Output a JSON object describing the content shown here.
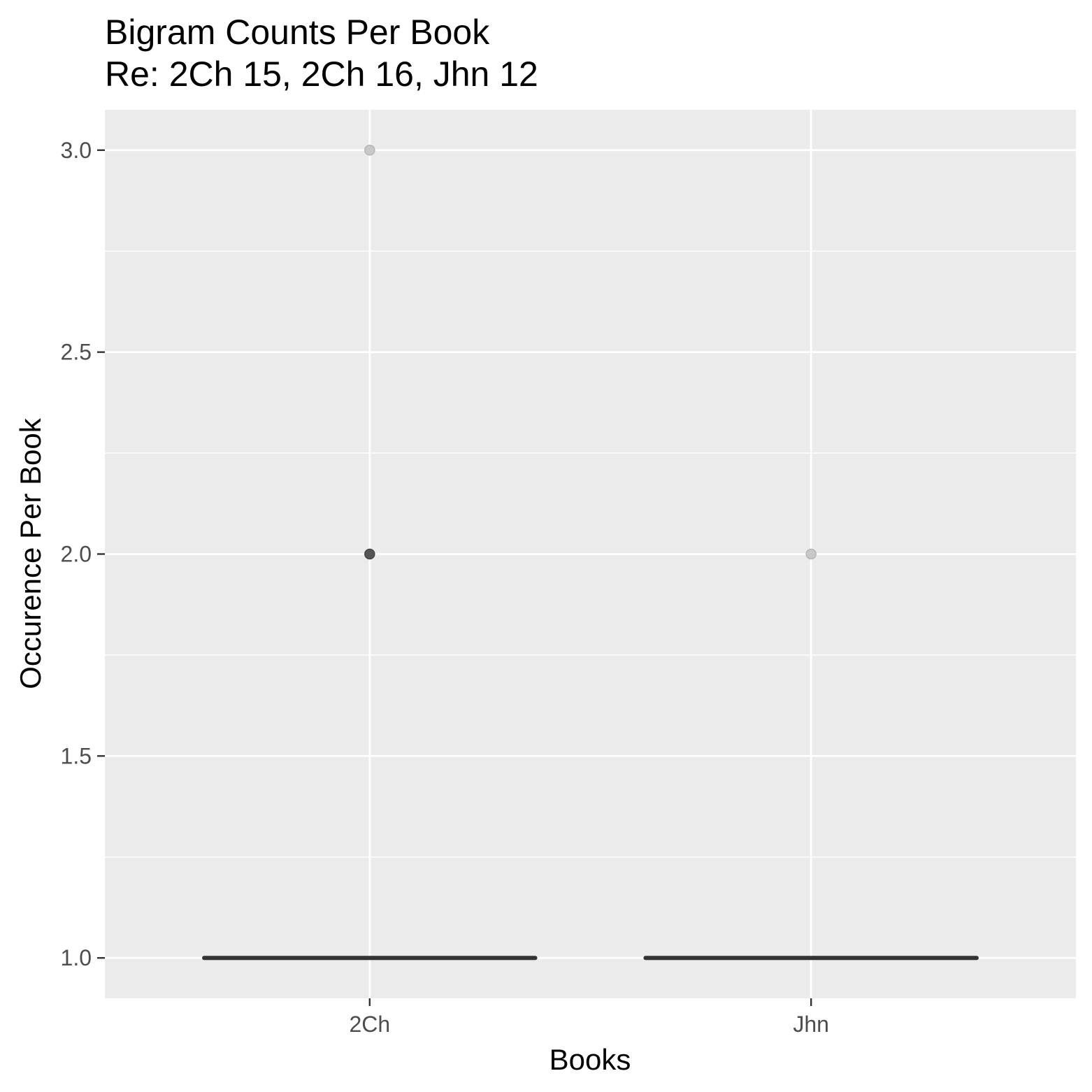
{
  "chart_data": {
    "type": "box",
    "title": "Bigram Counts Per Book",
    "subtitle": "Re: 2Ch 15, 2Ch 16, Jhn 12",
    "xlabel": "Books",
    "ylabel": "Occurence Per Book",
    "categories": [
      "2Ch",
      "Jhn"
    ],
    "ylim": [
      0.9,
      3.1
    ],
    "yticks": [
      1.0,
      1.5,
      2.0,
      2.5,
      3.0
    ],
    "ytick_labels": [
      "1.0",
      "1.5",
      "2.0",
      "2.5",
      "3.0"
    ],
    "boxes": [
      {
        "category": "2Ch",
        "min": 1,
        "q1": 1,
        "median": 1,
        "q3": 1,
        "max": 1
      },
      {
        "category": "Jhn",
        "min": 1,
        "q1": 1,
        "median": 1,
        "q3": 1,
        "max": 1
      }
    ],
    "outliers": [
      {
        "category": "2Ch",
        "y": 3,
        "shade": "light"
      },
      {
        "category": "2Ch",
        "y": 2,
        "shade": "dark"
      },
      {
        "category": "Jhn",
        "y": 2,
        "shade": "light"
      }
    ],
    "grid": true,
    "colors": {
      "panel": "#ebebeb",
      "grid": "#ffffff",
      "box": "#333333",
      "outlier_light": "#c8c8c8",
      "outlier_dark": "#555555"
    }
  }
}
